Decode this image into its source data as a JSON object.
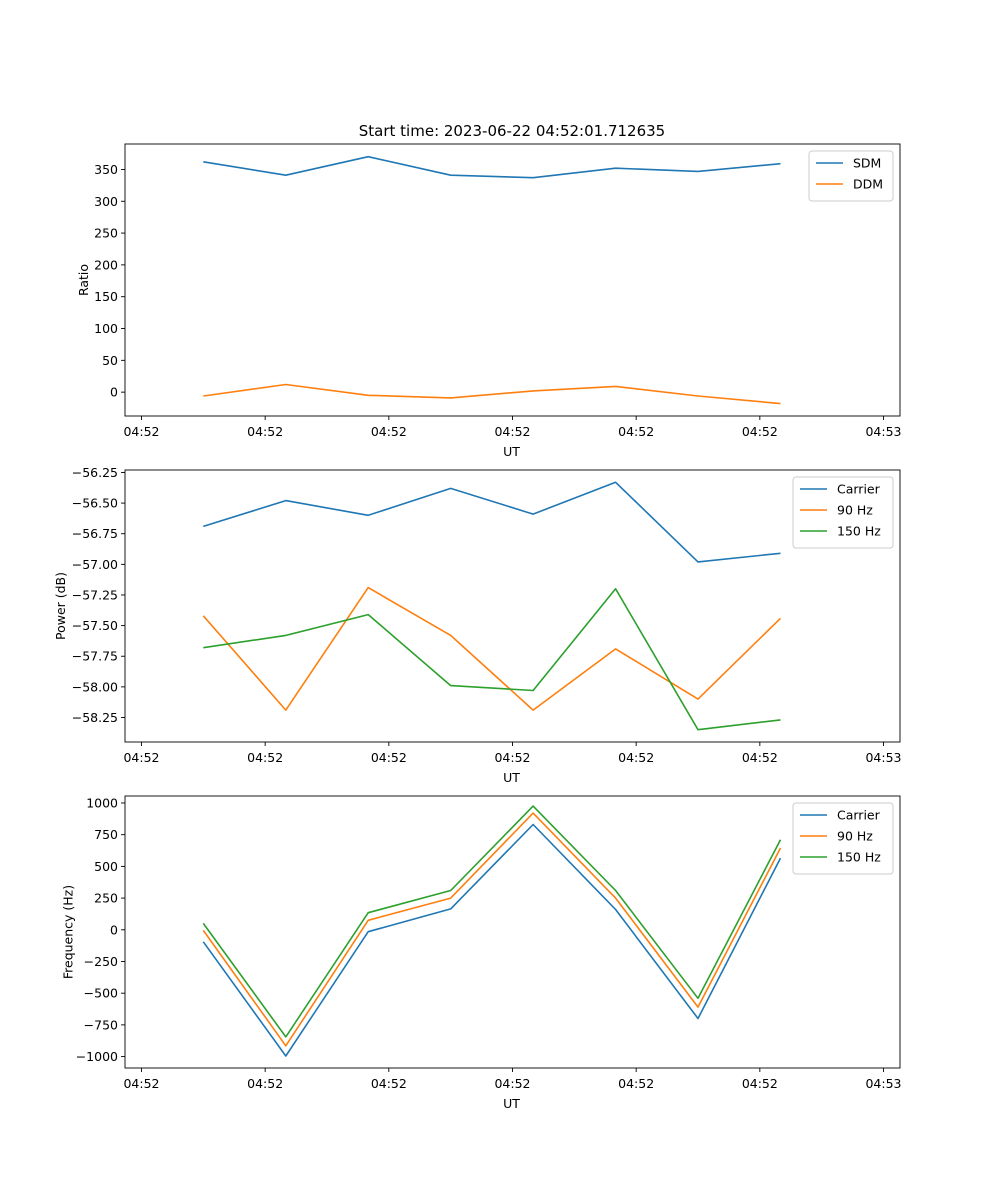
{
  "figure": {
    "title": "Start time: 2023-06-22 04:52:01.712635"
  },
  "colors": {
    "blue": "#1f77b4",
    "orange": "#ff7f0e",
    "green": "#2ca02c",
    "legend_border": "#cccccc"
  },
  "chart_data": [
    {
      "type": "line",
      "title": "Start time: 2023-06-22 04:52:01.712635",
      "xlabel": "UT",
      "ylabel": "Ratio",
      "xlim": [
        -0.5,
        8.9
      ],
      "ylim": [
        -37.5,
        390
      ],
      "x_tick_positions": [
        -0.3,
        1.2,
        2.7,
        4.2,
        5.7,
        7.2,
        8.7
      ],
      "x_tick_labels": [
        "04:52",
        "04:52",
        "04:52",
        "04:52",
        "04:52",
        "04:52",
        "04:53"
      ],
      "y_ticks": [
        0,
        50,
        100,
        150,
        200,
        250,
        300,
        350
      ],
      "grid": false,
      "legend": "upper right",
      "x": [
        0.45,
        1.45,
        2.45,
        3.45,
        4.45,
        5.45,
        6.45,
        7.45
      ],
      "series": [
        {
          "name": "SDM",
          "color": "#1f77b4",
          "values": [
            362,
            341,
            370,
            341,
            337,
            352,
            347,
            359
          ]
        },
        {
          "name": "DDM",
          "color": "#ff7f0e",
          "values": [
            -6,
            12,
            -5,
            -9,
            2,
            9,
            -6,
            -18
          ]
        }
      ]
    },
    {
      "type": "line",
      "xlabel": "UT",
      "ylabel": "Power (dB)",
      "xlim": [
        -0.5,
        8.9
      ],
      "ylim": [
        -58.45,
        -56.23
      ],
      "x_tick_positions": [
        -0.3,
        1.2,
        2.7,
        4.2,
        5.7,
        7.2,
        8.7
      ],
      "x_tick_labels": [
        "04:52",
        "04:52",
        "04:52",
        "04:52",
        "04:52",
        "04:52",
        "04:53"
      ],
      "y_ticks": [
        -58.25,
        -58.0,
        -57.75,
        -57.5,
        -57.25,
        -57.0,
        -56.75,
        -56.5,
        -56.25
      ],
      "y_tick_labels": [
        "−58.25",
        "−58.00",
        "−57.75",
        "−57.50",
        "−57.25",
        "−57.00",
        "−56.75",
        "−56.50",
        "−56.25"
      ],
      "grid": false,
      "legend": "upper right",
      "x": [
        0.45,
        1.45,
        2.45,
        3.45,
        4.45,
        5.45,
        6.45,
        7.45
      ],
      "series": [
        {
          "name": "Carrier",
          "color": "#1f77b4",
          "values": [
            -56.69,
            -56.48,
            -56.6,
            -56.38,
            -56.59,
            -56.33,
            -56.98,
            -56.91
          ]
        },
        {
          "name": "90 Hz",
          "color": "#ff7f0e",
          "values": [
            -57.42,
            -58.19,
            -57.19,
            -57.58,
            -58.19,
            -57.69,
            -58.1,
            -57.44
          ]
        },
        {
          "name": "150 Hz",
          "color": "#2ca02c",
          "values": [
            -57.68,
            -57.58,
            -57.41,
            -57.99,
            -58.03,
            -57.2,
            -58.35,
            -58.27
          ]
        }
      ]
    },
    {
      "type": "line",
      "xlabel": "UT",
      "ylabel": "Frequency (Hz)",
      "xlim": [
        -0.5,
        8.9
      ],
      "ylim": [
        -1090,
        1055
      ],
      "x_tick_positions": [
        -0.3,
        1.2,
        2.7,
        4.2,
        5.7,
        7.2,
        8.7
      ],
      "x_tick_labels": [
        "04:52",
        "04:52",
        "04:52",
        "04:52",
        "04:52",
        "04:52",
        "04:53"
      ],
      "y_ticks": [
        -1000,
        -750,
        -500,
        -250,
        0,
        250,
        500,
        750,
        1000
      ],
      "y_tick_labels": [
        "−1000",
        "−750",
        "−500",
        "−250",
        "0",
        "250",
        "500",
        "750",
        "1000"
      ],
      "grid": false,
      "legend": "upper right",
      "x": [
        0.45,
        1.45,
        2.45,
        3.45,
        4.45,
        5.45,
        6.45,
        7.45
      ],
      "series": [
        {
          "name": "Carrier",
          "color": "#1f77b4",
          "values": [
            -95,
            -995,
            -15,
            165,
            830,
            160,
            -700,
            565
          ]
        },
        {
          "name": "90 Hz",
          "color": "#ff7f0e",
          "values": [
            -5,
            -915,
            75,
            250,
            920,
            250,
            -610,
            645
          ]
        },
        {
          "name": "150 Hz",
          "color": "#2ca02c",
          "values": [
            50,
            -845,
            135,
            310,
            975,
            310,
            -540,
            710
          ]
        }
      ]
    }
  ]
}
